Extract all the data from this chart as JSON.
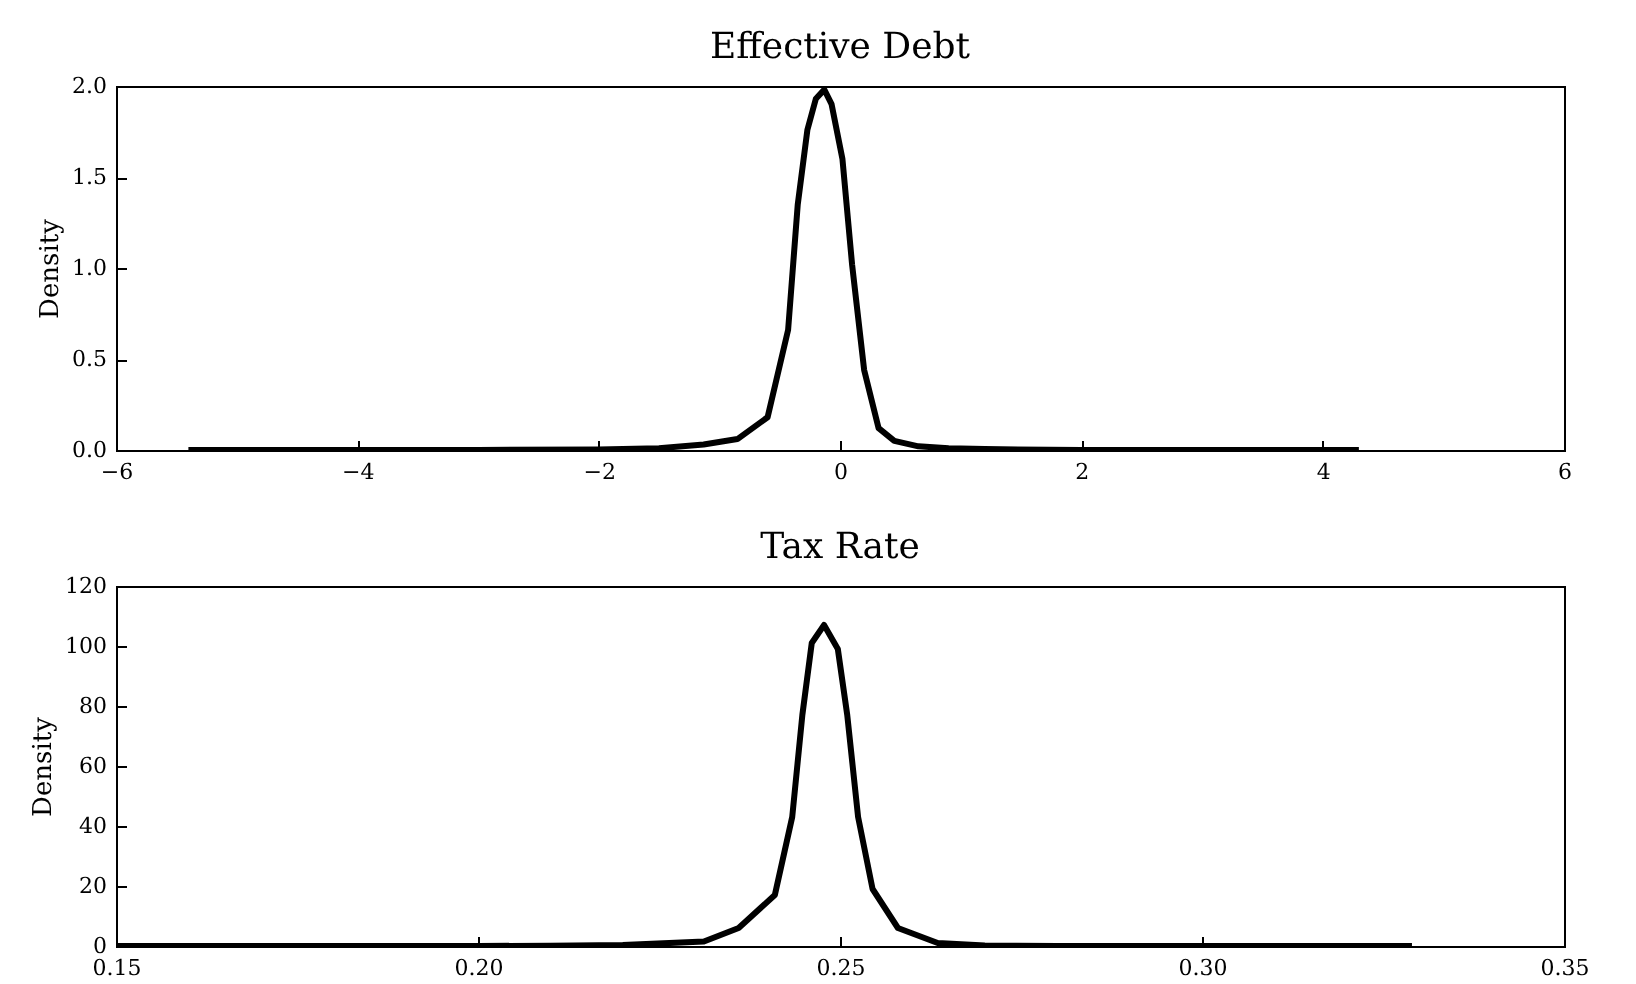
{
  "chart_data": [
    {
      "type": "line",
      "title": "Effective Debt",
      "ylabel": "Density",
      "color": "#000000",
      "grid": false,
      "x": [
        -5.4,
        -4,
        -3,
        -2,
        -1.5,
        -1.13,
        -0.85,
        -0.6,
        -0.43,
        -0.35,
        -0.27,
        -0.2,
        -0.13,
        -0.07,
        0.02,
        0.1,
        0.2,
        0.32,
        0.45,
        0.65,
        0.9,
        1.2,
        2,
        3,
        4.3
      ],
      "values": [
        0,
        0,
        0,
        0.003,
        0.01,
        0.03,
        0.06,
        0.18,
        0.66,
        1.35,
        1.76,
        1.93,
        1.98,
        1.9,
        1.6,
        1.02,
        0.44,
        0.12,
        0.05,
        0.02,
        0.01,
        0.005,
        0,
        0,
        0
      ],
      "xlim": [
        -6,
        6
      ],
      "xticks": [
        {
          "value": -6,
          "label": "−6"
        },
        {
          "value": -4,
          "label": "−4"
        },
        {
          "value": -2,
          "label": "−2"
        },
        0,
        2,
        4,
        6
      ],
      "ylim": [
        0,
        2
      ],
      "yticks": [
        {
          "value": 0,
          "label": "0.0"
        },
        {
          "value": 0.5,
          "label": "0.5"
        },
        {
          "value": 1,
          "label": "1.0"
        },
        {
          "value": 1.5,
          "label": "1.5"
        },
        {
          "value": 2,
          "label": "2.0"
        }
      ]
    },
    {
      "type": "line",
      "title": "Tax Rate",
      "ylabel": "Density",
      "color": "#000000",
      "grid": false,
      "x": [
        0.15,
        0.18,
        0.2,
        0.21,
        0.22,
        0.2312,
        0.236,
        0.241,
        0.2434,
        0.2448,
        0.2461,
        0.2478,
        0.2497,
        0.251,
        0.2525,
        0.2545,
        0.258,
        0.2635,
        0.27,
        0.28,
        0.3,
        0.329
      ],
      "values": [
        0,
        0,
        0,
        0.1,
        0.3,
        1.5,
        6,
        17,
        43,
        77,
        101,
        107,
        99,
        77,
        43,
        19,
        6,
        1,
        0.2,
        0,
        0,
        0
      ],
      "xlim": [
        0.15,
        0.35
      ],
      "xticks": [
        0.15,
        {
          "value": 0.2,
          "label": "0.20"
        },
        0.25,
        {
          "value": 0.3,
          "label": "0.30"
        },
        0.35
      ],
      "ylim": [
        0,
        120
      ],
      "yticks": [
        0,
        20,
        40,
        60,
        80,
        100,
        120
      ]
    }
  ]
}
